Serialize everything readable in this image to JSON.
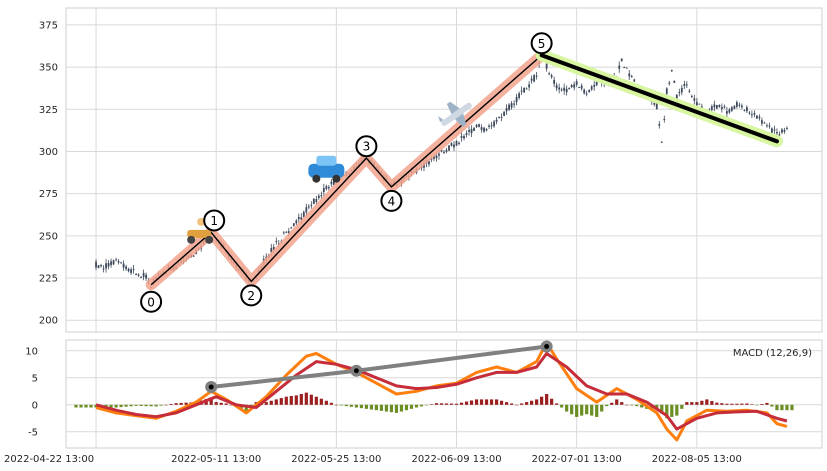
{
  "chart_data": [
    {
      "type": "candlestick",
      "title": "",
      "xlabel": "",
      "ylabel": "",
      "ylim": [
        193,
        385
      ],
      "yticks": [
        200,
        225,
        250,
        275,
        300,
        325,
        350,
        375
      ],
      "grid": true,
      "price": [
        {
          "t": 0,
          "v": 233
        },
        {
          "t": 2,
          "v": 232
        },
        {
          "t": 4,
          "v": 234
        },
        {
          "t": 6,
          "v": 231
        },
        {
          "t": 8,
          "v": 228
        },
        {
          "t": 10,
          "v": 226
        },
        {
          "t": 11,
          "v": 221
        },
        {
          "t": 12,
          "v": 224
        },
        {
          "t": 14,
          "v": 229
        },
        {
          "t": 16,
          "v": 232
        },
        {
          "t": 18,
          "v": 235
        },
        {
          "t": 20,
          "v": 241
        },
        {
          "t": 22,
          "v": 247
        },
        {
          "t": 23,
          "v": 252
        },
        {
          "t": 24,
          "v": 249
        },
        {
          "t": 26,
          "v": 242
        },
        {
          "t": 28,
          "v": 233
        },
        {
          "t": 30,
          "v": 226
        },
        {
          "t": 31,
          "v": 223
        },
        {
          "t": 32,
          "v": 227
        },
        {
          "t": 34,
          "v": 237
        },
        {
          "t": 36,
          "v": 245
        },
        {
          "t": 38,
          "v": 252
        },
        {
          "t": 40,
          "v": 258
        },
        {
          "t": 42,
          "v": 265
        },
        {
          "t": 44,
          "v": 272
        },
        {
          "t": 46,
          "v": 279
        },
        {
          "t": 48,
          "v": 283
        },
        {
          "t": 50,
          "v": 287
        },
        {
          "t": 52,
          "v": 291
        },
        {
          "t": 54,
          "v": 296
        },
        {
          "t": 56,
          "v": 290
        },
        {
          "t": 58,
          "v": 283
        },
        {
          "t": 59,
          "v": 279
        },
        {
          "t": 60,
          "v": 281
        },
        {
          "t": 62,
          "v": 285
        },
        {
          "t": 64,
          "v": 289
        },
        {
          "t": 66,
          "v": 293
        },
        {
          "t": 68,
          "v": 297
        },
        {
          "t": 70,
          "v": 301
        },
        {
          "t": 72,
          "v": 305
        },
        {
          "t": 74,
          "v": 310
        },
        {
          "t": 76,
          "v": 315
        },
        {
          "t": 78,
          "v": 312
        },
        {
          "t": 80,
          "v": 318
        },
        {
          "t": 82,
          "v": 324
        },
        {
          "t": 84,
          "v": 331
        },
        {
          "t": 86,
          "v": 338
        },
        {
          "t": 88,
          "v": 345
        },
        {
          "t": 89,
          "v": 357
        },
        {
          "t": 90,
          "v": 350
        },
        {
          "t": 92,
          "v": 338
        },
        {
          "t": 94,
          "v": 336
        },
        {
          "t": 96,
          "v": 340
        },
        {
          "t": 98,
          "v": 335
        },
        {
          "t": 100,
          "v": 340
        },
        {
          "t": 102,
          "v": 342
        },
        {
          "t": 104,
          "v": 344
        },
        {
          "t": 105,
          "v": 355
        },
        {
          "t": 106,
          "v": 348
        },
        {
          "t": 108,
          "v": 339
        },
        {
          "t": 110,
          "v": 333
        },
        {
          "t": 112,
          "v": 327
        },
        {
          "t": 113,
          "v": 304
        },
        {
          "t": 114,
          "v": 336
        },
        {
          "t": 115,
          "v": 348
        },
        {
          "t": 116,
          "v": 333
        },
        {
          "t": 118,
          "v": 340
        },
        {
          "t": 120,
          "v": 328
        },
        {
          "t": 122,
          "v": 323
        },
        {
          "t": 124,
          "v": 327
        },
        {
          "t": 126,
          "v": 324
        },
        {
          "t": 128,
          "v": 328
        },
        {
          "t": 130,
          "v": 325
        },
        {
          "t": 132,
          "v": 321
        },
        {
          "t": 134,
          "v": 315
        },
        {
          "t": 136,
          "v": 311
        },
        {
          "t": 138,
          "v": 313
        }
      ],
      "waves": [
        {
          "label": "0",
          "t": 11,
          "v": 221
        },
        {
          "label": "1",
          "t": 23,
          "v": 252
        },
        {
          "label": "2",
          "t": 31,
          "v": 223
        },
        {
          "label": "3",
          "t": 54,
          "v": 296
        },
        {
          "label": "4",
          "t": 59,
          "v": 279
        },
        {
          "label": "5",
          "t": 89,
          "v": 357
        }
      ],
      "trendline": {
        "t0": 89,
        "v0": 357,
        "t1": 136,
        "v1": 306
      },
      "markers": [
        {
          "icon": "scooter",
          "t": 21,
          "v": 250
        },
        {
          "icon": "car",
          "t": 46,
          "v": 288
        },
        {
          "icon": "airplane",
          "t": 72,
          "v": 322
        }
      ]
    },
    {
      "type": "line",
      "legend": "MACD (12,26,9)",
      "legend_position": "top-right",
      "ylim": [
        -8,
        12
      ],
      "yticks": [
        -5,
        0,
        5,
        10
      ],
      "grid": true,
      "x_tick_labels": [
        "2022-04-22 13:00",
        "2022-05-11 13:00",
        "2022-05-25 13:00",
        "2022-06-09 13:00",
        "2022-07-01 13:00",
        "2022-08-05 13:00"
      ],
      "x_tick_positions": [
        0,
        24,
        48,
        72,
        96,
        120
      ],
      "macd": [
        {
          "t": 0,
          "v": -0.5
        },
        {
          "t": 4,
          "v": -1.5
        },
        {
          "t": 8,
          "v": -2.0
        },
        {
          "t": 12,
          "v": -2.5
        },
        {
          "t": 16,
          "v": -1.2
        },
        {
          "t": 20,
          "v": 0.5
        },
        {
          "t": 23,
          "v": 2.5
        },
        {
          "t": 26,
          "v": 1.0
        },
        {
          "t": 30,
          "v": -1.5
        },
        {
          "t": 34,
          "v": 1.5
        },
        {
          "t": 38,
          "v": 5.5
        },
        {
          "t": 42,
          "v": 9.0
        },
        {
          "t": 44,
          "v": 9.5
        },
        {
          "t": 48,
          "v": 7.5
        },
        {
          "t": 52,
          "v": 6.0
        },
        {
          "t": 56,
          "v": 4.0
        },
        {
          "t": 60,
          "v": 2.0
        },
        {
          "t": 64,
          "v": 2.5
        },
        {
          "t": 68,
          "v": 3.5
        },
        {
          "t": 72,
          "v": 4.0
        },
        {
          "t": 76,
          "v": 6.0
        },
        {
          "t": 80,
          "v": 7.0
        },
        {
          "t": 84,
          "v": 6.0
        },
        {
          "t": 88,
          "v": 8.0
        },
        {
          "t": 90,
          "v": 11.5
        },
        {
          "t": 92,
          "v": 8.5
        },
        {
          "t": 96,
          "v": 3.0
        },
        {
          "t": 100,
          "v": 0.5
        },
        {
          "t": 104,
          "v": 3.0
        },
        {
          "t": 108,
          "v": 1.0
        },
        {
          "t": 112,
          "v": -1.5
        },
        {
          "t": 114,
          "v": -4.5
        },
        {
          "t": 116,
          "v": -6.5
        },
        {
          "t": 118,
          "v": -3.0
        },
        {
          "t": 122,
          "v": -1.0
        },
        {
          "t": 126,
          "v": -1.2
        },
        {
          "t": 130,
          "v": -1.0
        },
        {
          "t": 134,
          "v": -1.5
        },
        {
          "t": 136,
          "v": -3.5
        },
        {
          "t": 138,
          "v": -4.0
        }
      ],
      "signal": [
        {
          "t": 0,
          "v": 0.0
        },
        {
          "t": 4,
          "v": -1.0
        },
        {
          "t": 8,
          "v": -1.8
        },
        {
          "t": 12,
          "v": -2.2
        },
        {
          "t": 16,
          "v": -1.5
        },
        {
          "t": 20,
          "v": 0.0
        },
        {
          "t": 24,
          "v": 1.5
        },
        {
          "t": 28,
          "v": 0.0
        },
        {
          "t": 32,
          "v": -0.5
        },
        {
          "t": 36,
          "v": 2.5
        },
        {
          "t": 40,
          "v": 5.5
        },
        {
          "t": 44,
          "v": 8.0
        },
        {
          "t": 48,
          "v": 7.5
        },
        {
          "t": 52,
          "v": 6.5
        },
        {
          "t": 56,
          "v": 5.0
        },
        {
          "t": 60,
          "v": 3.5
        },
        {
          "t": 64,
          "v": 3.0
        },
        {
          "t": 68,
          "v": 3.2
        },
        {
          "t": 72,
          "v": 3.8
        },
        {
          "t": 76,
          "v": 5.0
        },
        {
          "t": 80,
          "v": 6.0
        },
        {
          "t": 84,
          "v": 6.0
        },
        {
          "t": 88,
          "v": 7.0
        },
        {
          "t": 90,
          "v": 9.5
        },
        {
          "t": 94,
          "v": 7.0
        },
        {
          "t": 98,
          "v": 3.5
        },
        {
          "t": 102,
          "v": 2.0
        },
        {
          "t": 106,
          "v": 2.0
        },
        {
          "t": 110,
          "v": 0.5
        },
        {
          "t": 114,
          "v": -2.0
        },
        {
          "t": 116,
          "v": -4.5
        },
        {
          "t": 120,
          "v": -2.5
        },
        {
          "t": 124,
          "v": -1.5
        },
        {
          "t": 128,
          "v": -1.3
        },
        {
          "t": 132,
          "v": -1.2
        },
        {
          "t": 136,
          "v": -2.5
        },
        {
          "t": 138,
          "v": -3.0
        }
      ],
      "divergence": [
        {
          "t": 23,
          "v": 3.3
        },
        {
          "t": 52,
          "v": 6.3
        },
        {
          "t": 90,
          "v": 10.8
        }
      ]
    }
  ],
  "colors": {
    "grid": "#d9d9d9",
    "frame": "#cfcfcf",
    "candle": "#3e4a5c",
    "wave_line": "#000000",
    "wave_glow": "#f2a38d",
    "trend_line": "#000000",
    "trend_glow": "#d8f5a2",
    "macd_line": "#ff7f0e",
    "signal_line": "#c62d3a",
    "hist_pos": "#9b1f1f",
    "hist_neg": "#6b8e23",
    "divergence": "#808080"
  }
}
